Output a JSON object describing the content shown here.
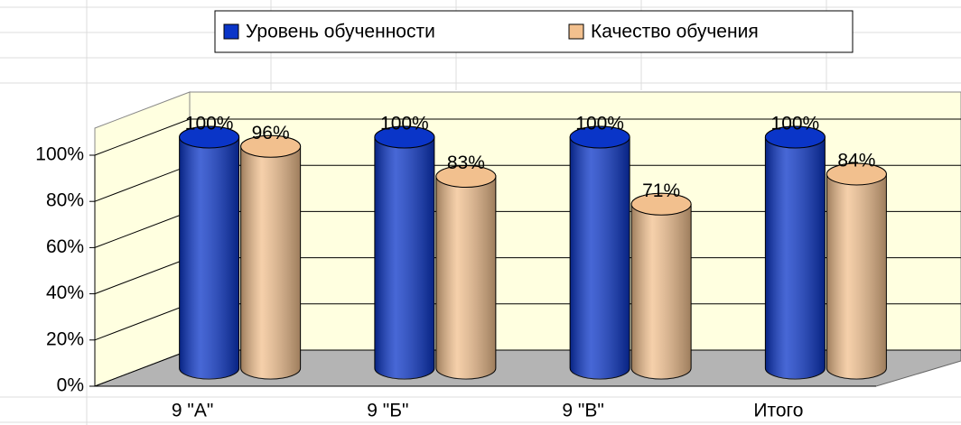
{
  "chart_data": {
    "type": "bar3d",
    "categories": [
      "9 \"А\"",
      "9 \"Б\"",
      "9  \"В\"",
      "Итого"
    ],
    "series": [
      {
        "name": "Уровень обученности",
        "color": "#0a35c8",
        "values": [
          100,
          100,
          100,
          100
        ],
        "value_labels": [
          "100%",
          "100%",
          "100%",
          "100%"
        ]
      },
      {
        "name": "Качество обучения",
        "color": "#f2c08e",
        "values": [
          96,
          83,
          71,
          84
        ],
        "value_labels": [
          "96%",
          "83%",
          "71%",
          "84%"
        ]
      }
    ],
    "ylim": [
      0,
      100
    ],
    "yticks": [
      {
        "value": 0,
        "label": "0%"
      },
      {
        "value": 20,
        "label": "20%"
      },
      {
        "value": 40,
        "label": "40%"
      },
      {
        "value": 60,
        "label": "60%"
      },
      {
        "value": 80,
        "label": "80%"
      },
      {
        "value": 100,
        "label": "100%"
      }
    ],
    "grid": true,
    "legend": "top"
  }
}
